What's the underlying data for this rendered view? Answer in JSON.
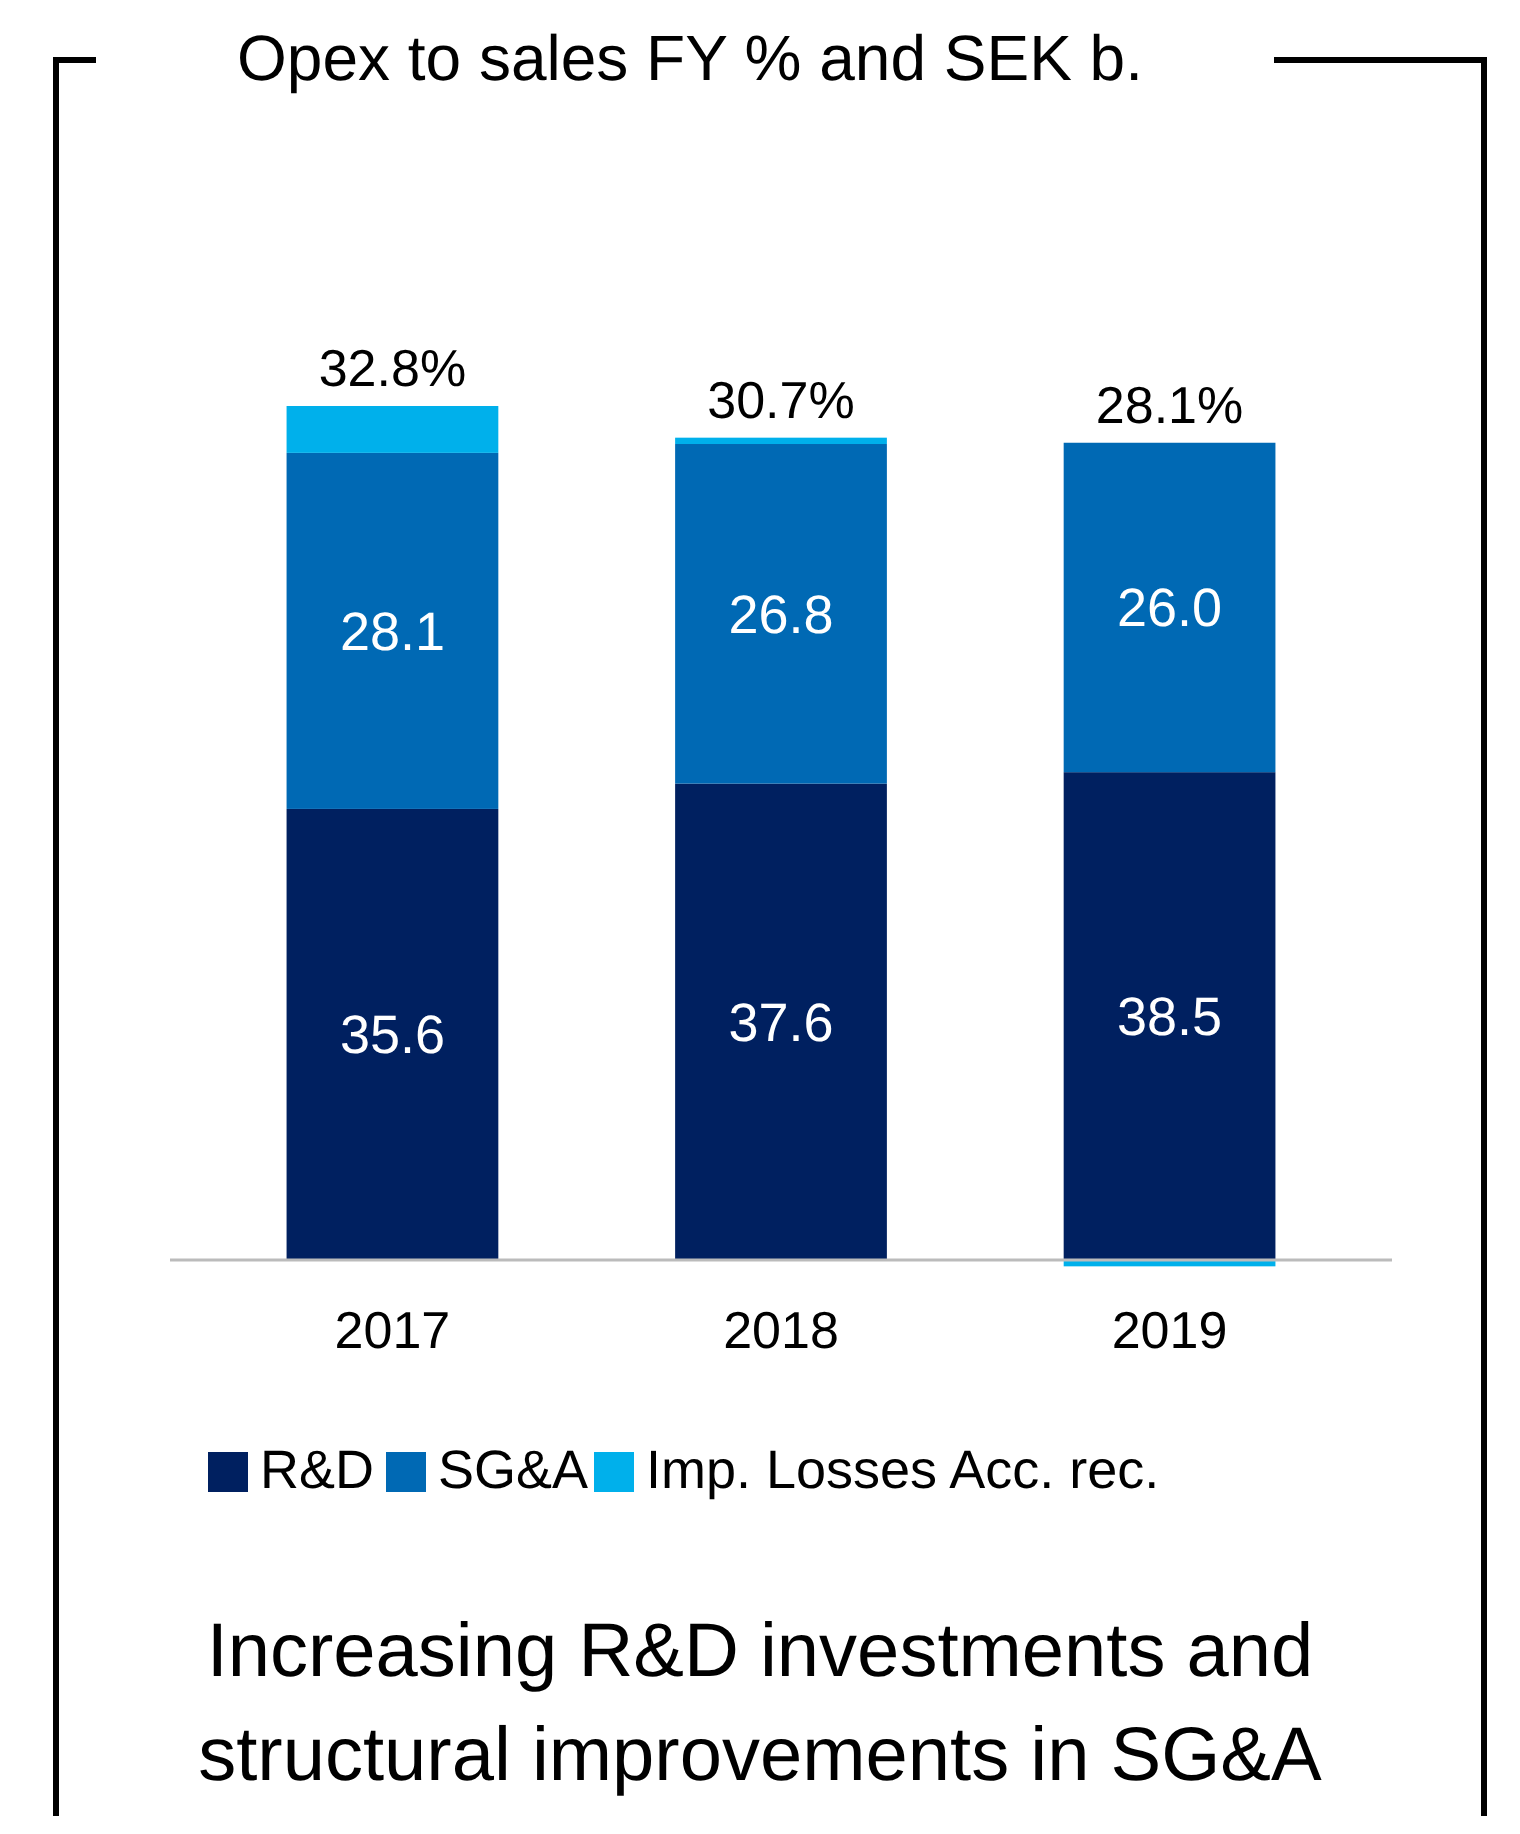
{
  "chart_data": {
    "type": "bar",
    "title": "Opex to sales FY % and SEK b.",
    "stacked": true,
    "categories": [
      "2017",
      "2018",
      "2019"
    ],
    "series": [
      {
        "name": "R&D",
        "color": "#002060",
        "values": [
          35.6,
          37.6,
          38.5
        ],
        "value_labels": [
          "35.6",
          "37.6",
          "38.5"
        ]
      },
      {
        "name": "SG&A",
        "color": "#0069b4",
        "values": [
          28.1,
          26.8,
          26.0
        ],
        "value_labels": [
          "28.1",
          "26.8",
          "26.0"
        ]
      },
      {
        "name": "Imp. Losses Acc. rec.",
        "color": "#00b0eb",
        "values": [
          3.7,
          0.5,
          -0.5
        ],
        "value_labels": [
          null,
          null,
          null
        ]
      }
    ],
    "legend": "bottom",
    "annotations": [
      {
        "text": "32.8%",
        "x": "2017",
        "y": 67.4
      },
      {
        "text": "30.7%",
        "x": "2018",
        "y": 64.9
      },
      {
        "text": "28.1%",
        "x": "2019",
        "y": 64.5
      },
      "Increasing R&D investments and structural improvements in SG&A"
    ]
  }
}
